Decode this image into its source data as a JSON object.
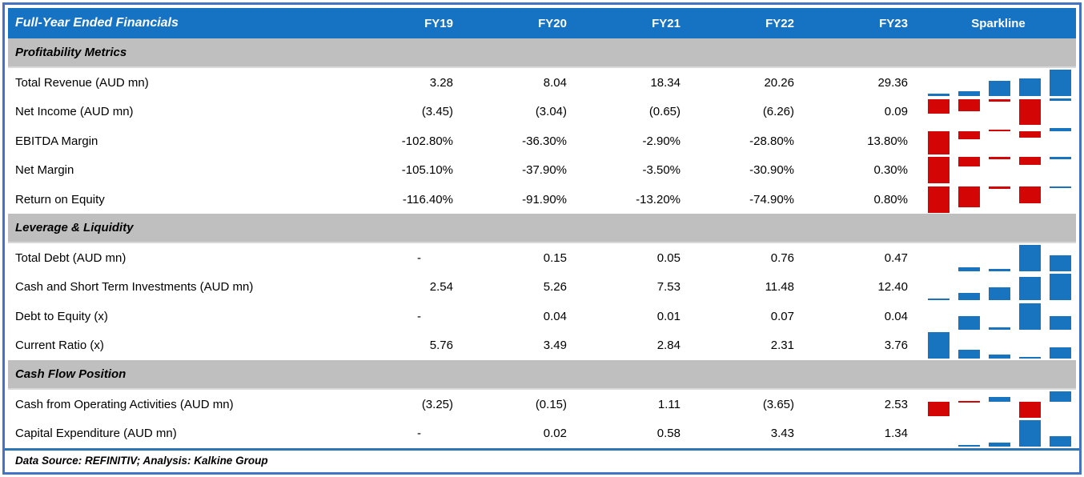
{
  "header": {
    "title": "Full-Year Ended Financials",
    "columns": [
      "FY19",
      "FY20",
      "FY21",
      "FY22",
      "FY23"
    ],
    "sparkline_label": "Sparkline"
  },
  "footer": {
    "text": "Data Source: REFINITIV; Analysis: Kalkine Group"
  },
  "colors": {
    "frame_border": "#4472C4",
    "header_bg": "#1673C4",
    "header_text": "#FFFFFF",
    "section_bg": "#BFBFBF",
    "section_underline": "#D9D9D9",
    "rule_blue": "#2E75B6",
    "bar_positive": "#1874BE",
    "bar_negative": "#D40505",
    "text": "#000000"
  },
  "chart_data": {
    "type": "table",
    "title": "Full-Year Ended Financials",
    "categories": [
      "FY19",
      "FY20",
      "FY21",
      "FY22",
      "FY23"
    ],
    "sparkline_type": "column",
    "sparkline_colors": {
      "positive": "#1874BE",
      "negative": "#D40505"
    },
    "sections": [
      {
        "title": "Profitability Metrics",
        "rows": [
          {
            "label": "Total Revenue (AUD mn)",
            "display": [
              "3.28",
              "8.04",
              "18.34",
              "20.26",
              "29.36"
            ],
            "values": [
              3.28,
              8.04,
              18.34,
              20.26,
              29.36
            ]
          },
          {
            "label": "Net Income (AUD mn)",
            "display": [
              "(3.45)",
              "(3.04)",
              "(0.65)",
              "(6.26)",
              "0.09"
            ],
            "values": [
              -3.45,
              -3.04,
              -0.65,
              -6.26,
              0.09
            ]
          },
          {
            "label": "EBITDA Margin",
            "display": [
              "-102.80%",
              "-36.30%",
              "-2.90%",
              "-28.80%",
              "13.80%"
            ],
            "values": [
              -102.8,
              -36.3,
              -2.9,
              -28.8,
              13.8
            ]
          },
          {
            "label": "Net Margin",
            "display": [
              "-105.10%",
              "-37.90%",
              "-3.50%",
              "-30.90%",
              "0.30%"
            ],
            "values": [
              -105.1,
              -37.9,
              -3.5,
              -30.9,
              0.3
            ]
          },
          {
            "label": "Return on Equity",
            "display": [
              "-116.40%",
              "-91.90%",
              "-13.20%",
              "-74.90%",
              "0.80%"
            ],
            "values": [
              -116.4,
              -91.9,
              -13.2,
              -74.9,
              0.8
            ]
          }
        ]
      },
      {
        "title": "Leverage & Liquidity",
        "rows": [
          {
            "label": "Total Debt (AUD mn)",
            "display": [
              "-",
              "0.15",
              "0.05",
              "0.76",
              "0.47"
            ],
            "values": [
              null,
              0.15,
              0.05,
              0.76,
              0.47
            ]
          },
          {
            "label": "Cash and Short Term Investments (AUD mn)",
            "display": [
              "2.54",
              "5.26",
              "7.53",
              "11.48",
              "12.40"
            ],
            "values": [
              2.54,
              5.26,
              7.53,
              11.48,
              12.4
            ]
          },
          {
            "label": "Debt to Equity (x)",
            "display": [
              "-",
              "0.04",
              "0.01",
              "0.07",
              "0.04"
            ],
            "values": [
              null,
              0.04,
              0.01,
              0.07,
              0.04
            ]
          },
          {
            "label": "Current Ratio (x)",
            "display": [
              "5.76",
              "3.49",
              "2.84",
              "2.31",
              "3.76"
            ],
            "values": [
              5.76,
              3.49,
              2.84,
              2.31,
              3.76
            ]
          }
        ]
      },
      {
        "title": "Cash Flow Position",
        "rows": [
          {
            "label": "Cash from Operating Activities (AUD mn)",
            "display": [
              "(3.25)",
              "(0.15)",
              "1.11",
              "(3.65)",
              "2.53"
            ],
            "values": [
              -3.25,
              -0.15,
              1.11,
              -3.65,
              2.53
            ]
          },
          {
            "label": "Capital Expenditure (AUD mn)",
            "display": [
              "-",
              "0.02",
              "0.58",
              "3.43",
              "1.34"
            ],
            "values": [
              null,
              0.02,
              0.58,
              3.43,
              1.34
            ]
          }
        ]
      }
    ]
  }
}
